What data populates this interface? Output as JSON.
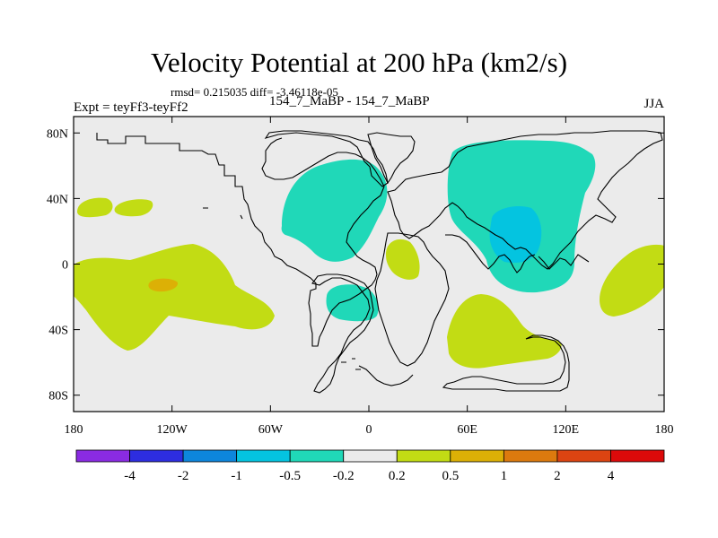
{
  "chart_data": {
    "type": "heatmap",
    "title": "Velocity Potential at 200 hPa (km2/s)",
    "stats_label": "rmsd= 0.215035 diff= -3.46118e-05",
    "left_label": "Expt = teyFf3-teyFf2",
    "center_label": "154_7_MaBP - 154_7_MaBP",
    "right_label": "JJA",
    "x_ticks": [
      "180",
      "120W",
      "60W",
      "0",
      "60E",
      "120E",
      "180"
    ],
    "y_ticks": [
      "80N",
      "40N",
      "0",
      "40S",
      "80S"
    ],
    "lon_range": [
      -180,
      180
    ],
    "lat_range": [
      -90,
      90
    ],
    "colorbar": {
      "labels": [
        "-4",
        "-2",
        "-1",
        "-0.5",
        "-0.2",
        "0.2",
        "0.5",
        "1",
        "2",
        "4"
      ],
      "colors": [
        "#8a2be2",
        "#2d2de0",
        "#0d86dc",
        "#04c4e0",
        "#20d8b8",
        "#ebebeb",
        "#c2dc14",
        "#dcb006",
        "#dc7a0e",
        "#dc4412",
        "#dc0a0a"
      ]
    },
    "fill_colors": {
      "negative_weak": "#20d8b8",
      "negative_moderate": "#04c4e0",
      "positive_weak": "#c2dc14",
      "positive_moderate": "#dcb006",
      "background": "#ebebeb"
    },
    "regions": [
      {
        "name": "north-pacific-positive",
        "class": "0.2 to 0.5",
        "lon": -145,
        "lat": 30
      },
      {
        "name": "tropical-pacific-positive",
        "class": "0.2 to 0.5",
        "lon": -130,
        "lat": -15
      },
      {
        "name": "central-pacific-max",
        "class": "0.5 to 1",
        "lon": -122,
        "lat": -10
      },
      {
        "name": "north-atlantic-negative",
        "class": "-0.5 to -0.2",
        "lon": -35,
        "lat": 40
      },
      {
        "name": "south-atlantic-negative",
        "class": "-0.5 to -0.2",
        "lon": -25,
        "lat": -25
      },
      {
        "name": "central-africa-positive",
        "class": "0.2 to 0.5",
        "lon": 20,
        "lat": 5
      },
      {
        "name": "asia-negative",
        "class": "-0.5 to -0.2",
        "lon": 90,
        "lat": 35
      },
      {
        "name": "asia-moderate-negative",
        "class": "-1 to -0.5",
        "lon": 90,
        "lat": 22
      },
      {
        "name": "indian-ocean-positive",
        "class": "0.2 to 0.5",
        "lon": 75,
        "lat": -45
      },
      {
        "name": "east-pacific-positive",
        "class": "0.2 to 0.5",
        "lon": 170,
        "lat": -15
      }
    ]
  }
}
